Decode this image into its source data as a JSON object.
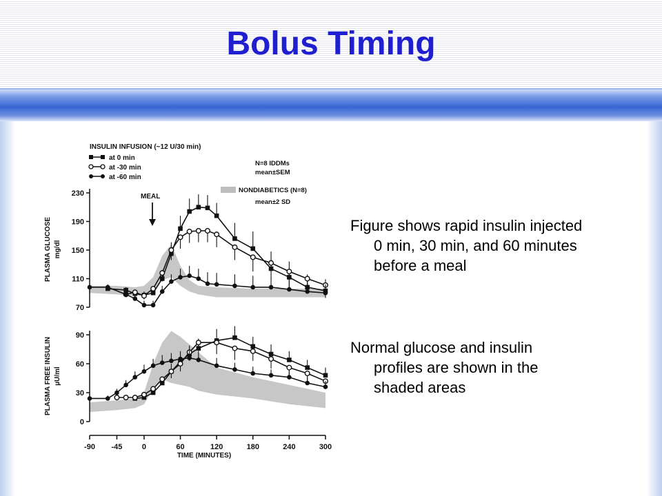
{
  "slide": {
    "title": "Bolus Timing",
    "paragraphs": [
      [
        "Figure shows rapid insulin injected",
        "0 min, 30 min, and 60 minutes",
        "before a meal"
      ],
      [
        "Normal glucose and insulin",
        "profiles are shown in the",
        "shaded areas"
      ]
    ],
    "colors": {
      "title": "#1f1fd0",
      "band": "#3566d4",
      "ink": "#111111",
      "shade": "#bdbdbd"
    }
  },
  "chart_data": [
    {
      "type": "line",
      "title": "INSULIN INFUSION (~12 U/30 min)",
      "legend_entries": [
        {
          "marker": "filled-square",
          "label": "at 0 min"
        },
        {
          "marker": "open-circle",
          "label": "at -30 min"
        },
        {
          "marker": "filled-circle",
          "label": "at -60 min"
        }
      ],
      "annotations": {
        "study": "N=8 IDDMs",
        "stat": "mean±SEM",
        "nondiabetics": "NONDIABETICS (N=8)",
        "nondiabetics_stat": "mean±2 SD",
        "meal": "MEAL"
      },
      "ylabel": "PLASMA GLUCOSE",
      "yunit": "mg/dl",
      "ylim": [
        70,
        230
      ],
      "yticks": [
        70,
        110,
        150,
        190,
        230
      ],
      "xlim": [
        -90,
        300
      ],
      "series": [
        {
          "marker": "filled-square",
          "x": [
            -60,
            -30,
            -15,
            0,
            15,
            30,
            45,
            60,
            75,
            90,
            105,
            120,
            150,
            180,
            210,
            240,
            270,
            300
          ],
          "y": [
            96,
            94,
            89,
            87,
            90,
            110,
            145,
            180,
            204,
            210,
            209,
            198,
            166,
            152,
            124,
            112,
            98,
            93
          ],
          "err": [
            4,
            4,
            4,
            5,
            8,
            12,
            16,
            18,
            18,
            18,
            18,
            18,
            22,
            24,
            24,
            22,
            18,
            16
          ]
        },
        {
          "marker": "open-circle",
          "x": [
            -30,
            -15,
            0,
            15,
            30,
            45,
            60,
            75,
            90,
            105,
            120,
            150,
            180,
            210,
            240,
            270,
            300
          ],
          "y": [
            88,
            91,
            86,
            96,
            118,
            150,
            168,
            176,
            177,
            177,
            172,
            154,
            140,
            132,
            120,
            110,
            101
          ],
          "err": [
            4,
            4,
            5,
            8,
            12,
            14,
            16,
            16,
            16,
            16,
            18,
            18,
            20,
            22,
            22,
            20,
            18
          ]
        },
        {
          "marker": "filled-circle",
          "x": [
            -90,
            -60,
            -30,
            -15,
            0,
            15,
            30,
            45,
            60,
            75,
            90,
            105,
            120,
            150,
            180,
            210,
            240,
            270,
            300
          ],
          "y": [
            98,
            98,
            88,
            82,
            73,
            73,
            92,
            106,
            112,
            114,
            110,
            103,
            102,
            100,
            98,
            98,
            95,
            92,
            90
          ],
          "err": [
            4,
            4,
            5,
            6,
            6,
            6,
            8,
            10,
            12,
            14,
            14,
            16,
            16,
            16,
            16,
            14,
            14,
            12,
            12
          ]
        }
      ],
      "nondiabetic_band": {
        "x": [
          -90,
          -45,
          -15,
          0,
          15,
          30,
          45,
          60,
          75,
          90,
          120,
          180,
          240,
          300
        ],
        "lower": [
          90,
          88,
          86,
          86,
          92,
          108,
          112,
          100,
          92,
          88,
          84,
          84,
          84,
          84
        ],
        "upper": [
          100,
          100,
          98,
          100,
          112,
          142,
          158,
          128,
          108,
          100,
          98,
          96,
          96,
          96
        ]
      }
    },
    {
      "type": "line",
      "ylabel": "PLASMA FREE INSULIN",
      "yunit": "µU/ml",
      "xlabel": "TIME (MINUTES)",
      "ylim": [
        0,
        90
      ],
      "yticks": [
        0,
        30,
        60,
        90
      ],
      "xlim": [
        -90,
        300
      ],
      "xticks": [
        -90,
        -45,
        0,
        60,
        120,
        180,
        240,
        300
      ],
      "series": [
        {
          "marker": "filled-square",
          "x": [
            -15,
            0,
            15,
            30,
            45,
            60,
            75,
            90,
            120,
            150,
            180,
            210,
            240,
            270,
            300
          ],
          "y": [
            24,
            25,
            30,
            40,
            52,
            62,
            70,
            76,
            84,
            87,
            78,
            70,
            64,
            56,
            48
          ],
          "err": [
            3,
            3,
            4,
            6,
            8,
            8,
            9,
            10,
            12,
            12,
            10,
            10,
            9,
            8,
            8
          ]
        },
        {
          "marker": "open-circle",
          "x": [
            -45,
            -30,
            -15,
            0,
            15,
            30,
            45,
            60,
            75,
            90,
            120,
            150,
            180,
            210,
            240,
            270,
            300
          ],
          "y": [
            25,
            25,
            25,
            28,
            34,
            44,
            52,
            60,
            72,
            82,
            82,
            76,
            73,
            65,
            56,
            50,
            42
          ],
          "err": [
            3,
            3,
            3,
            4,
            5,
            6,
            7,
            8,
            9,
            10,
            12,
            12,
            10,
            10,
            9,
            8,
            8
          ]
        },
        {
          "marker": "filled-circle",
          "x": [
            -90,
            -60,
            -45,
            -30,
            -15,
            0,
            15,
            30,
            45,
            60,
            75,
            90,
            120,
            150,
            180,
            210,
            240,
            270,
            300
          ],
          "y": [
            24,
            24,
            30,
            38,
            46,
            52,
            58,
            61,
            63,
            65,
            66,
            64,
            58,
            54,
            50,
            48,
            46,
            40,
            36
          ],
          "err": [
            3,
            3,
            4,
            5,
            6,
            7,
            7,
            8,
            8,
            8,
            8,
            8,
            8,
            7,
            7,
            6,
            6,
            6,
            6
          ]
        }
      ],
      "nondiabetic_band": {
        "x": [
          -90,
          -45,
          -15,
          0,
          15,
          30,
          45,
          60,
          75,
          90,
          120,
          180,
          240,
          300
        ],
        "lower": [
          10,
          12,
          14,
          18,
          34,
          44,
          40,
          38,
          36,
          32,
          28,
          24,
          18,
          14
        ],
        "upper": [
          20,
          22,
          24,
          30,
          60,
          82,
          94,
          88,
          80,
          72,
          56,
          46,
          38,
          30
        ]
      }
    }
  ]
}
